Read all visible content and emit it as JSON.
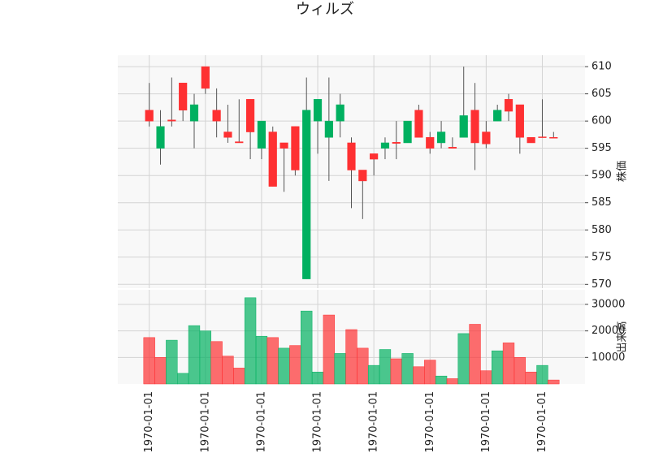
{
  "chart_data": {
    "type": "candlestick",
    "title": "ウィルズ",
    "ylabel": "株価",
    "volume_label": "出来高",
    "categories": [
      "1970-01-01",
      null,
      null,
      null,
      null,
      "1970-01-01",
      null,
      null,
      null,
      null,
      "1970-01-01",
      null,
      null,
      null,
      null,
      "1970-01-01",
      null,
      null,
      null,
      null,
      "1970-01-01",
      null,
      null,
      null,
      null,
      "1970-01-01",
      null,
      null,
      null,
      null,
      "1970-01-01",
      null,
      null,
      null,
      null,
      "1970-01-01",
      null
    ],
    "open": [
      602,
      595,
      600.2,
      607,
      600,
      610,
      602,
      598,
      596.2,
      604,
      595,
      598,
      596,
      599,
      571,
      600,
      597,
      600,
      596,
      591,
      594,
      595,
      596.1,
      596,
      602,
      597,
      596,
      595.2,
      597,
      602,
      598,
      600,
      604,
      603,
      597,
      597.1,
      597
    ],
    "high": [
      607,
      602,
      608,
      607,
      605,
      610,
      606,
      603,
      604,
      604,
      600,
      599,
      596,
      599,
      608,
      604,
      608,
      605,
      597,
      591,
      594,
      597,
      600,
      600,
      603,
      598,
      600,
      597,
      610,
      607,
      600,
      603,
      605,
      603,
      597,
      604,
      598
    ],
    "low": [
      599,
      592,
      599,
      600,
      595,
      605,
      597,
      596,
      596,
      593,
      593,
      588,
      587,
      590,
      571,
      594,
      589,
      597,
      584,
      582,
      590,
      593,
      593,
      596,
      597,
      594,
      595,
      595,
      597,
      591,
      595,
      600,
      600,
      594,
      596,
      597,
      597
    ],
    "close": [
      600,
      599,
      600,
      602,
      603,
      606,
      600,
      597,
      596,
      598,
      600,
      588,
      595,
      591,
      602,
      604,
      600,
      603,
      591,
      589,
      593,
      596,
      595.9,
      600,
      597,
      595,
      598,
      595,
      601,
      596,
      595.8,
      602,
      601.8,
      597,
      596,
      597,
      596.9
    ],
    "volume": [
      17500,
      10000,
      16500,
      4000,
      22000,
      20000,
      16000,
      10500,
      6000,
      32500,
      18000,
      17500,
      13500,
      14500,
      27500,
      4500,
      26000,
      11500,
      20500,
      13500,
      7000,
      13000,
      9500,
      11500,
      6500,
      9000,
      3000,
      2000,
      19000,
      22500,
      5000,
      12500,
      15500,
      10000,
      4500,
      7000,
      1500
    ],
    "ylim": [
      569.3,
      612.1
    ],
    "yticks": [
      570,
      575,
      580,
      585,
      590,
      595,
      600,
      605,
      610
    ],
    "volume_ylim": [
      0,
      35500
    ],
    "volume_yticks": [
      10000,
      20000,
      30000
    ],
    "up_color": "#00b060",
    "down_color": "#fe3032",
    "grid": true
  }
}
